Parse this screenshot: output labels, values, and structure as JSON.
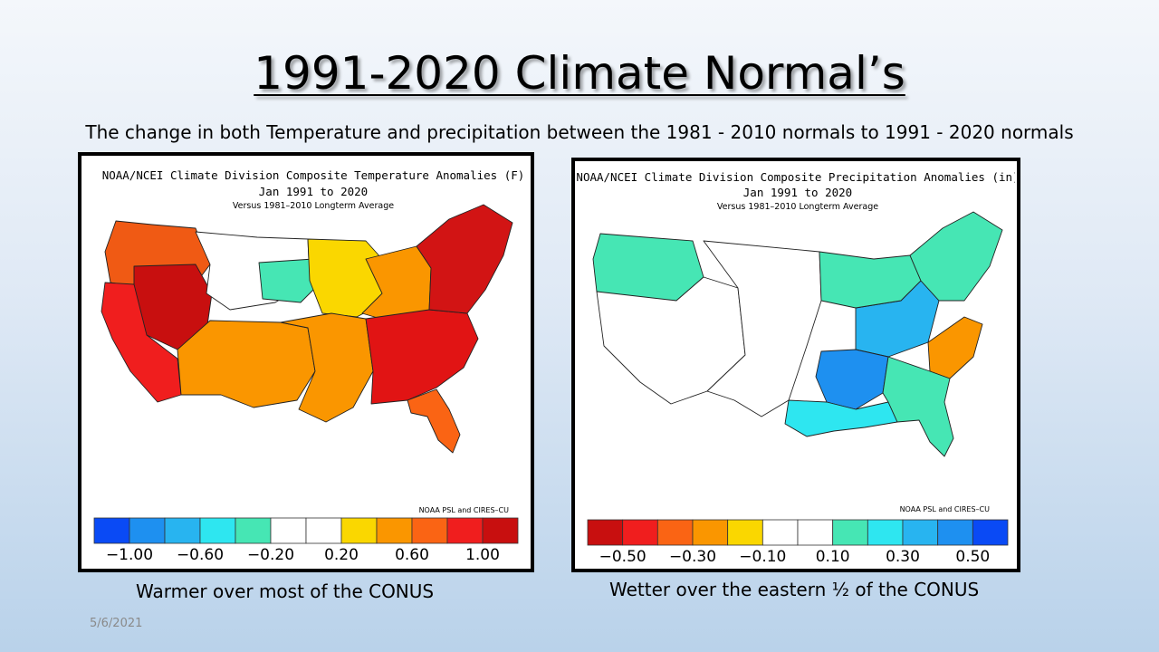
{
  "slide": {
    "title": "1991-2020 Climate Normal’s",
    "subtitle": "The change in both Temperature and precipitation between the 1981 - 2010 normals to 1991 - 2020 normals",
    "date": "5/6/2021"
  },
  "maps": [
    {
      "id": "temperature",
      "title_line1": "NOAA/NCEI Climate Division Composite Temperature Anomalies (F)",
      "title_line2": "Jan 1991 to 2020",
      "title_line3": "Versus 1981–2010 Longterm Average",
      "credit": "NOAA PSL and CIRES–CU",
      "caption": "Warmer over most of the CONUS",
      "colorbar_colors": [
        "#0a4af5",
        "#1e90f0",
        "#28b4f0",
        "#2ee6f0",
        "#46e6b4",
        "#ffffff",
        "#ffffff",
        "#fad700",
        "#fa9600",
        "#fa6414",
        "#f01e1e",
        "#c80f0f"
      ],
      "colorbar_labels": [
        "−1.00",
        "−0.60",
        "−0.20",
        "0.20",
        "0.60",
        "1.00"
      ],
      "regions": [
        {
          "name": "Northwest",
          "color": "#f05a14"
        },
        {
          "name": "Great Basin",
          "color": "#c80f0f"
        },
        {
          "name": "California",
          "color": "#f01e1e"
        },
        {
          "name": "Southwest",
          "color": "#fa9600"
        },
        {
          "name": "Northern Plains",
          "color": "#ffffff"
        },
        {
          "name": "Dakotas",
          "color": "#46e6b4"
        },
        {
          "name": "Upper Midwest",
          "color": "#fad700"
        },
        {
          "name": "Great Lakes",
          "color": "#fa9600"
        },
        {
          "name": "Southern Plains",
          "color": "#fa9600"
        },
        {
          "name": "Southeast",
          "color": "#e11414"
        },
        {
          "name": "Northeast",
          "color": "#d21414"
        },
        {
          "name": "Florida",
          "color": "#fa6414"
        }
      ]
    },
    {
      "id": "precipitation",
      "title_line1": "NOAA/NCEI Climate Division Composite Precipitation Anomalies (in)",
      "title_line2": "Jan 1991 to 2020",
      "title_line3": "Versus 1981–2010 Longterm Average",
      "credit": "NOAA PSL and CIRES–CU",
      "caption": "Wetter over the eastern ½ of the CONUS",
      "colorbar_colors": [
        "#c80f0f",
        "#f01e1e",
        "#fa6414",
        "#fa9600",
        "#fad700",
        "#ffffff",
        "#ffffff",
        "#46e6b4",
        "#2ee6f0",
        "#28b4f0",
        "#1e90f0",
        "#0a4af5"
      ],
      "colorbar_labels": [
        "−0.50",
        "−0.30",
        "−0.10",
        "0.10",
        "0.30",
        "0.50"
      ],
      "regions": [
        {
          "name": "Pacific Northwest",
          "color": "#46e6b4"
        },
        {
          "name": "West",
          "color": "#ffffff"
        },
        {
          "name": "Plains",
          "color": "#ffffff"
        },
        {
          "name": "Ohio Valley",
          "color": "#28b4f0"
        },
        {
          "name": "Midwest",
          "color": "#46e6b4"
        },
        {
          "name": "Lower Mississippi",
          "color": "#1e90f0"
        },
        {
          "name": "Gulf Coast",
          "color": "#2ee6f0"
        },
        {
          "name": "Carolinas",
          "color": "#fa9600"
        },
        {
          "name": "Northeast",
          "color": "#46e6b4"
        },
        {
          "name": "Florida",
          "color": "#46e6b4"
        }
      ]
    }
  ]
}
